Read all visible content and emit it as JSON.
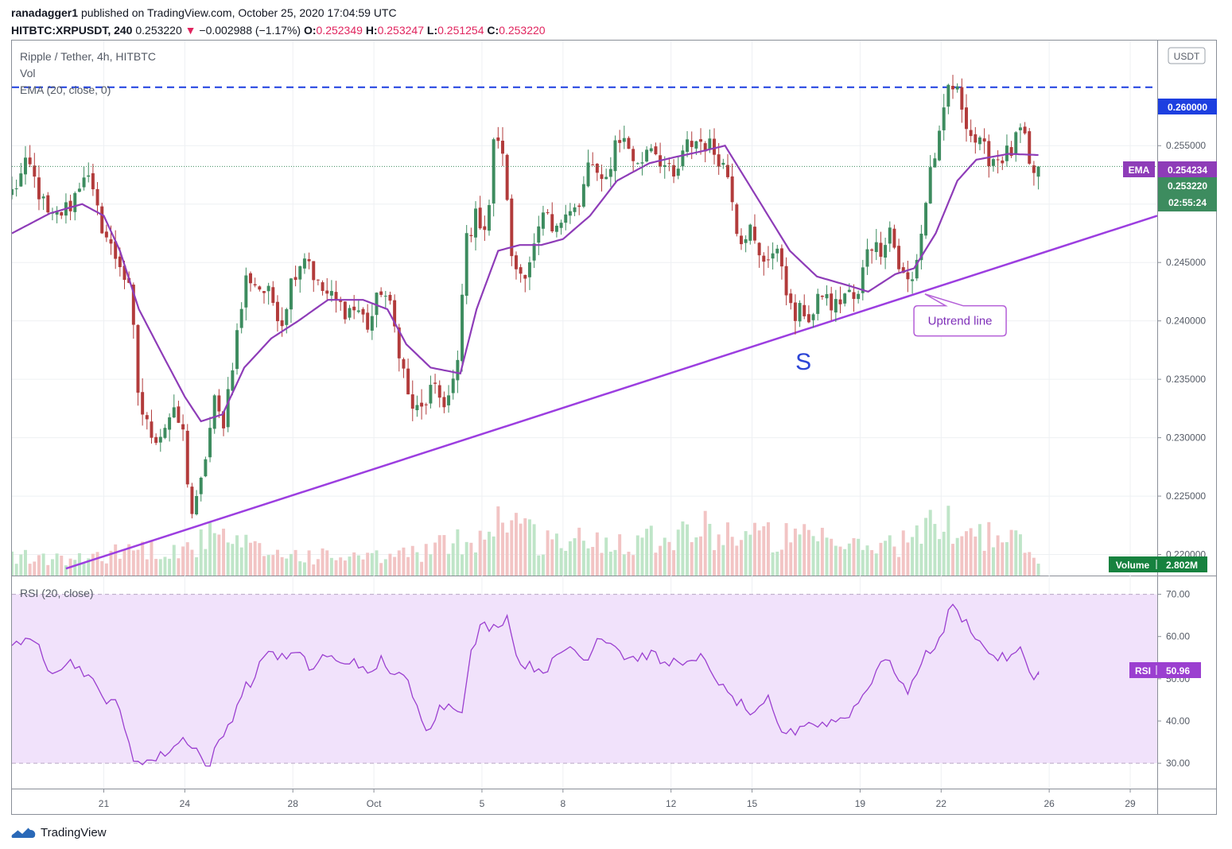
{
  "header": {
    "author": "ranadagger1",
    "published": "published on TradingView.com, October 25, 2020 17:04:59 UTC",
    "symbol": "HITBTC:XRPUSDT, 240",
    "last": "0.253220",
    "change_arrow": "▼",
    "change": "−0.002988 (−1.17%)",
    "o_label": "O:",
    "o": "0.252349",
    "h_label": "H:",
    "h": "0.253247",
    "l_label": "L:",
    "l": "0.251254",
    "c_label": "C:",
    "c": "0.253220"
  },
  "legend": {
    "title": "Ripple / Tether, 4h, HITBTC",
    "vol": "Vol",
    "ema": "EMA (20, close, 0)",
    "rsi": "RSI (20, close)"
  },
  "annotations": {
    "uptrend_label": "Uptrend line",
    "s_label": "S"
  },
  "badges": {
    "currency": "USDT",
    "resistance": "0.260000",
    "ema_label": "EMA",
    "ema_value": "0.254234",
    "price": "0.253220",
    "countdown": "02:55:24",
    "volume_label": "Volume",
    "volume_value": "2.802M",
    "rsi_label": "RSI",
    "rsi_value": "50.96"
  },
  "footer": {
    "brand": "TradingView"
  },
  "colors": {
    "up": "#26a69a",
    "down": "#ef5350",
    "candle_up": "#3d8c5f",
    "candle_down": "#b23b3b",
    "ema": "#8e3cb8",
    "trendline": "#9c3ee0",
    "resistance": "#1d3fe0",
    "rsi_line": "#9b3fd0",
    "rsi_band": "#f1e2fb",
    "vol_up": "#bfe5c8",
    "vol_down": "#f2c4c4"
  },
  "chart_data": {
    "type": "candlestick",
    "title": "Ripple / Tether, 4h, HITBTC",
    "price_axis": {
      "ticks": [
        "0.255000",
        "0.250000",
        "0.245000",
        "0.240000",
        "0.235000",
        "0.230000",
        "0.225000",
        "0.220000"
      ],
      "range": [
        0.2182,
        0.264
      ]
    },
    "time_axis": {
      "ticks": [
        "21",
        "24",
        "28",
        "Oct",
        "5",
        "8",
        "12",
        "15",
        "19",
        "22",
        "26",
        "29"
      ],
      "tick_days": [
        3,
        6,
        10,
        13,
        17,
        20,
        24,
        27,
        31,
        34,
        38,
        41
      ],
      "range_days": [
        -0.4,
        42.0
      ]
    },
    "resistance": 0.26,
    "trendline": {
      "from": {
        "day": 1.6,
        "price": 0.2188
      },
      "to": {
        "day": 42.0,
        "price": 0.249
      }
    },
    "support_label_at": {
      "day": 28.9,
      "price": 0.2365
    },
    "uptrend_label_at": {
      "day": 34.7,
      "price": 0.24
    },
    "rsi": {
      "levels": [
        30,
        40,
        50,
        60,
        70
      ],
      "band": [
        30,
        70
      ],
      "range": [
        24.0,
        73.5
      ],
      "last": 50.96
    },
    "anchors": [
      [
        -0.4,
        0.251
      ],
      [
        0.2,
        0.2535
      ],
      [
        1.0,
        0.2485
      ],
      [
        1.8,
        0.25
      ],
      [
        2.3,
        0.253
      ],
      [
        2.8,
        0.249
      ],
      [
        3.3,
        0.246
      ],
      [
        3.6,
        0.245
      ],
      [
        4.0,
        0.242
      ],
      [
        4.3,
        0.233
      ],
      [
        4.6,
        0.231
      ],
      [
        5.0,
        0.23
      ],
      [
        5.5,
        0.232
      ],
      [
        5.9,
        0.231
      ],
      [
        6.1,
        0.2265
      ],
      [
        6.3,
        0.223
      ],
      [
        6.6,
        0.226
      ],
      [
        6.8,
        0.229
      ],
      [
        7.1,
        0.233
      ],
      [
        7.4,
        0.231
      ],
      [
        7.8,
        0.237
      ],
      [
        8.3,
        0.244
      ],
      [
        8.7,
        0.243
      ],
      [
        9.2,
        0.242
      ],
      [
        9.6,
        0.24
      ],
      [
        10.0,
        0.244
      ],
      [
        10.5,
        0.246
      ],
      [
        10.9,
        0.243
      ],
      [
        11.4,
        0.242
      ],
      [
        11.9,
        0.241
      ],
      [
        12.4,
        0.241
      ],
      [
        12.8,
        0.2395
      ],
      [
        13.3,
        0.243
      ],
      [
        13.6,
        0.241
      ],
      [
        14.0,
        0.237
      ],
      [
        14.3,
        0.233
      ],
      [
        14.7,
        0.232
      ],
      [
        15.1,
        0.234
      ],
      [
        15.7,
        0.233
      ],
      [
        16.1,
        0.236
      ],
      [
        16.4,
        0.247
      ],
      [
        16.8,
        0.249
      ],
      [
        17.2,
        0.248
      ],
      [
        17.5,
        0.257
      ],
      [
        17.9,
        0.252
      ],
      [
        18.1,
        0.245
      ],
      [
        18.5,
        0.244
      ],
      [
        18.9,
        0.246
      ],
      [
        19.3,
        0.249
      ],
      [
        19.7,
        0.247
      ],
      [
        20.1,
        0.25
      ],
      [
        20.6,
        0.2495
      ],
      [
        21.0,
        0.254
      ],
      [
        21.5,
        0.251
      ],
      [
        22.0,
        0.256
      ],
      [
        22.4,
        0.255
      ],
      [
        22.8,
        0.253
      ],
      [
        23.2,
        0.2555
      ],
      [
        23.7,
        0.2535
      ],
      [
        24.1,
        0.252
      ],
      [
        24.6,
        0.255
      ],
      [
        25.0,
        0.2555
      ],
      [
        25.4,
        0.255
      ],
      [
        25.8,
        0.254
      ],
      [
        26.2,
        0.252
      ],
      [
        26.5,
        0.247
      ],
      [
        26.9,
        0.248
      ],
      [
        27.3,
        0.245
      ],
      [
        27.7,
        0.246
      ],
      [
        28.1,
        0.245
      ],
      [
        28.5,
        0.24
      ],
      [
        28.9,
        0.241
      ],
      [
        29.2,
        0.24
      ],
      [
        29.6,
        0.2425
      ],
      [
        30.0,
        0.241
      ],
      [
        30.5,
        0.2425
      ],
      [
        30.9,
        0.2415
      ],
      [
        31.3,
        0.247
      ],
      [
        31.7,
        0.246
      ],
      [
        32.1,
        0.248
      ],
      [
        32.5,
        0.244
      ],
      [
        32.9,
        0.243
      ],
      [
        33.3,
        0.248
      ],
      [
        33.6,
        0.253
      ],
      [
        34.0,
        0.256
      ],
      [
        34.3,
        0.2605
      ],
      [
        34.7,
        0.259
      ],
      [
        35.1,
        0.256
      ],
      [
        35.4,
        0.255
      ],
      [
        35.8,
        0.254
      ],
      [
        36.2,
        0.254
      ],
      [
        36.6,
        0.2545
      ],
      [
        37.0,
        0.2565
      ],
      [
        37.3,
        0.2525
      ],
      [
        37.6,
        0.253
      ]
    ],
    "ema_anchors": [
      [
        -0.4,
        0.2475
      ],
      [
        1.0,
        0.2492
      ],
      [
        2.2,
        0.25
      ],
      [
        3.0,
        0.249
      ],
      [
        3.6,
        0.246
      ],
      [
        4.3,
        0.241
      ],
      [
        5.2,
        0.237
      ],
      [
        6.0,
        0.2335
      ],
      [
        6.6,
        0.2314
      ],
      [
        7.4,
        0.232
      ],
      [
        8.2,
        0.236
      ],
      [
        9.2,
        0.2385
      ],
      [
        10.2,
        0.24
      ],
      [
        11.3,
        0.2418
      ],
      [
        12.6,
        0.2418
      ],
      [
        13.5,
        0.241
      ],
      [
        14.2,
        0.238
      ],
      [
        15.1,
        0.236
      ],
      [
        16.2,
        0.2355
      ],
      [
        16.8,
        0.241
      ],
      [
        17.6,
        0.246
      ],
      [
        18.4,
        0.2465
      ],
      [
        19.2,
        0.2465
      ],
      [
        20.0,
        0.247
      ],
      [
        21.0,
        0.249
      ],
      [
        22.0,
        0.252
      ],
      [
        23.2,
        0.2535
      ],
      [
        24.1,
        0.254
      ],
      [
        25.1,
        0.2545
      ],
      [
        26.0,
        0.255
      ],
      [
        26.8,
        0.252
      ],
      [
        27.6,
        0.249
      ],
      [
        28.4,
        0.246
      ],
      [
        29.4,
        0.2438
      ],
      [
        30.6,
        0.243
      ],
      [
        31.3,
        0.2425
      ],
      [
        32.3,
        0.244
      ],
      [
        33.0,
        0.2445
      ],
      [
        33.8,
        0.2475
      ],
      [
        34.6,
        0.252
      ],
      [
        35.3,
        0.2538
      ],
      [
        36.5,
        0.2543
      ],
      [
        37.6,
        0.2542
      ]
    ],
    "rsi_anchors": [
      [
        -0.4,
        59.0
      ],
      [
        0.6,
        58.0
      ],
      [
        1.0,
        52.0
      ],
      [
        1.8,
        54.0
      ],
      [
        2.4,
        51.0
      ],
      [
        3.0,
        45.0
      ],
      [
        3.4,
        46.0
      ],
      [
        3.8,
        37.0
      ],
      [
        4.1,
        31.0
      ],
      [
        4.8,
        30.5
      ],
      [
        5.4,
        33.0
      ],
      [
        6.0,
        36.0
      ],
      [
        6.5,
        33.0
      ],
      [
        6.8,
        28.5
      ],
      [
        7.2,
        34.0
      ],
      [
        7.7,
        40.0
      ],
      [
        8.2,
        48.0
      ],
      [
        8.6,
        50.0
      ],
      [
        9.0,
        57.0
      ],
      [
        9.6,
        55.0
      ],
      [
        10.2,
        56.0
      ],
      [
        10.7,
        52.0
      ],
      [
        11.2,
        56.0
      ],
      [
        11.8,
        53.0
      ],
      [
        12.3,
        55.0
      ],
      [
        12.8,
        50.0
      ],
      [
        13.3,
        55.0
      ],
      [
        13.7,
        51.0
      ],
      [
        14.2,
        50.0
      ],
      [
        14.6,
        43.0
      ],
      [
        15.0,
        38.0
      ],
      [
        15.4,
        43.0
      ],
      [
        15.8,
        44.0
      ],
      [
        16.3,
        43.0
      ],
      [
        16.6,
        56.0
      ],
      [
        17.0,
        63.0
      ],
      [
        17.4,
        62.0
      ],
      [
        18.0,
        65.0
      ],
      [
        18.3,
        54.0
      ],
      [
        18.8,
        53.0
      ],
      [
        19.3,
        52.0
      ],
      [
        19.8,
        55.0
      ],
      [
        20.3,
        58.0
      ],
      [
        20.8,
        54.0
      ],
      [
        21.3,
        60.0
      ],
      [
        21.8,
        59.0
      ],
      [
        22.3,
        55.0
      ],
      [
        22.8,
        55.0
      ],
      [
        23.3,
        56.0
      ],
      [
        23.8,
        53.0
      ],
      [
        24.3,
        55.0
      ],
      [
        24.7,
        53.0
      ],
      [
        25.1,
        55.0
      ],
      [
        25.6,
        51.0
      ],
      [
        26.1,
        46.0
      ],
      [
        26.6,
        44.0
      ],
      [
        27.1,
        41.0
      ],
      [
        27.6,
        45.0
      ],
      [
        28.0,
        38.0
      ],
      [
        28.5,
        37.0
      ],
      [
        29.0,
        40.0
      ],
      [
        29.4,
        39.0
      ],
      [
        30.0,
        40.0
      ],
      [
        30.5,
        41.0
      ],
      [
        31.0,
        45.0
      ],
      [
        31.3,
        48.0
      ],
      [
        31.8,
        55.0
      ],
      [
        32.3,
        52.0
      ],
      [
        32.8,
        46.0
      ],
      [
        33.3,
        55.0
      ],
      [
        33.6,
        57.0
      ],
      [
        34.0,
        59.0
      ],
      [
        34.3,
        67.5
      ],
      [
        34.7,
        65.0
      ],
      [
        35.1,
        62.0
      ],
      [
        35.6,
        57.0
      ],
      [
        36.1,
        55.0
      ],
      [
        36.6,
        55.0
      ],
      [
        37.0,
        57.0
      ],
      [
        37.3,
        51.0
      ],
      [
        37.6,
        50.96
      ]
    ],
    "volume": {
      "unit": "M",
      "last": 2.802,
      "anchors": [
        [
          -0.4,
          4.5
        ],
        [
          2.0,
          3.5
        ],
        [
          4.0,
          6.5
        ],
        [
          6.0,
          6.0
        ],
        [
          7.0,
          9.0
        ],
        [
          9.0,
          5.5
        ],
        [
          11.0,
          4.5
        ],
        [
          13.0,
          4.0
        ],
        [
          15.0,
          6.0
        ],
        [
          17.0,
          9.5
        ],
        [
          18.0,
          15.5
        ],
        [
          19.0,
          8.5
        ],
        [
          21.0,
          8.0
        ],
        [
          23.0,
          9.0
        ],
        [
          25.0,
          11.0
        ],
        [
          27.0,
          9.5
        ],
        [
          29.0,
          8.5
        ],
        [
          31.0,
          6.5
        ],
        [
          33.0,
          8.5
        ],
        [
          34.0,
          13.0
        ],
        [
          35.0,
          11.0
        ],
        [
          36.0,
          9.0
        ],
        [
          37.0,
          7.5
        ],
        [
          37.6,
          2.8
        ]
      ]
    }
  }
}
